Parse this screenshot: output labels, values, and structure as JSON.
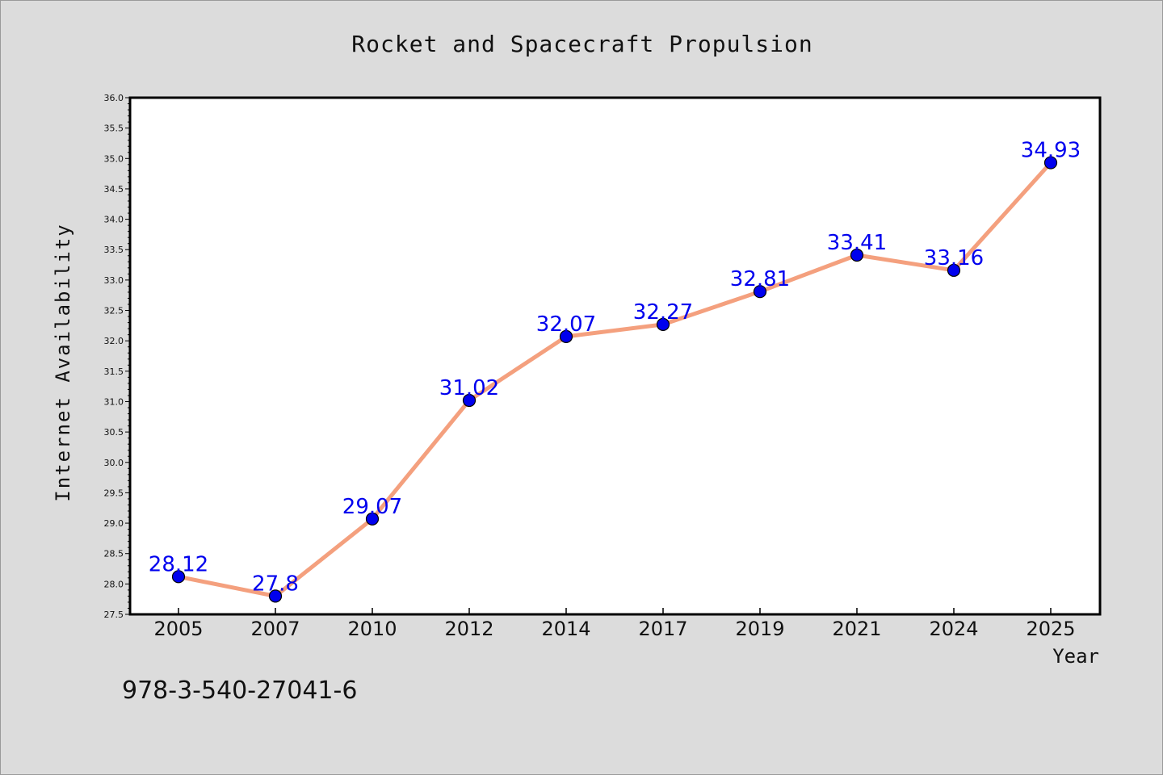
{
  "chart_data": {
    "type": "line",
    "title": "Rocket and Spacecraft Propulsion",
    "xlabel": "Year",
    "ylabel": "Internet Availability",
    "categories": [
      "2005",
      "2007",
      "2010",
      "2012",
      "2014",
      "2017",
      "2019",
      "2021",
      "2024",
      "2025"
    ],
    "series": [
      {
        "values": [
          28.12,
          27.8,
          29.07,
          31.02,
          32.07,
          32.27,
          32.81,
          33.41,
          33.16,
          34.93
        ],
        "labels": [
          "28.12",
          "27.8",
          "29.07",
          "31.02",
          "32.07",
          "32.27",
          "32.81",
          "33.41",
          "33.16",
          "34.93"
        ]
      }
    ],
    "ylim": [
      27.5,
      36.0
    ],
    "yticks": [
      "27.5",
      "28.0",
      "28.5",
      "29.0",
      "29.5",
      "30.0",
      "30.5",
      "31.0",
      "31.5",
      "32.0",
      "32.5",
      "33.0",
      "33.5",
      "34.0",
      "34.5",
      "35.0",
      "35.5",
      "36.0"
    ],
    "grid": false,
    "legend": "none",
    "colors": {
      "line": "#f4a07e",
      "marker": "#0000ee",
      "data_label": "#0000ee"
    }
  },
  "footnote": "978-3-540-27041-6"
}
